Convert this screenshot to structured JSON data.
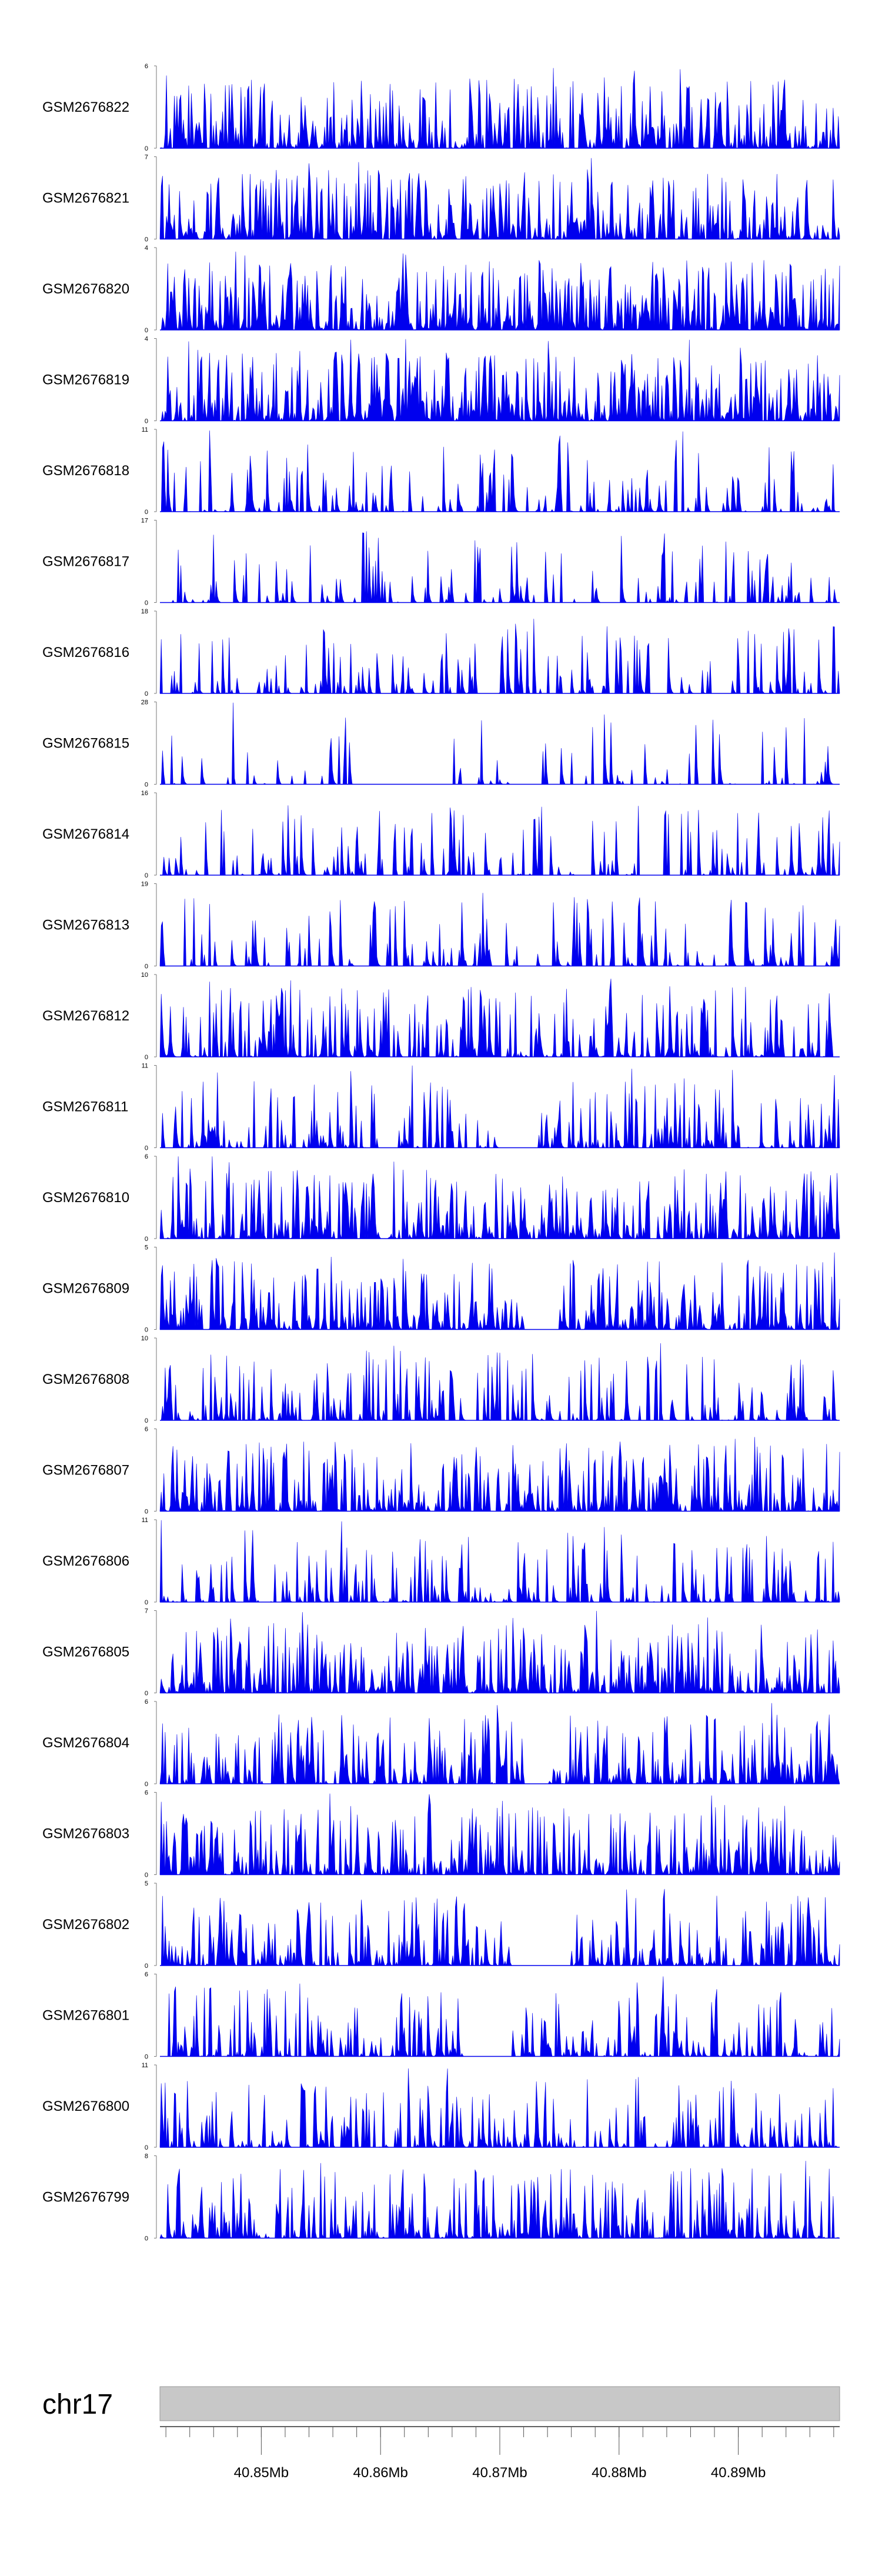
{
  "colors": {
    "signal": "#0000ee",
    "ideogram": "#c8c8c8",
    "axis": "#000000"
  },
  "chart_data": {
    "type": "area",
    "chromosome": "chr17",
    "xlim_mb": [
      40.8415,
      40.8985
    ],
    "xticks": [
      {
        "value": 40.85,
        "label": "40.85Mb"
      },
      {
        "value": 40.86,
        "label": "40.86Mb"
      },
      {
        "value": 40.87,
        "label": "40.87Mb"
      },
      {
        "value": 40.88,
        "label": "40.88Mb"
      },
      {
        "value": 40.89,
        "label": "40.89Mb"
      }
    ],
    "tracks": [
      {
        "name": "GSM2676822",
        "ymin": "0",
        "ymax": "6",
        "ymax_value": 6,
        "seed": 1822,
        "density": 0.7,
        "gap": []
      },
      {
        "name": "GSM2676821",
        "ymin": "0",
        "ymax": "7",
        "ymax_value": 7,
        "seed": 1821,
        "density": 0.75,
        "gap": []
      },
      {
        "name": "GSM2676820",
        "ymin": "0",
        "ymax": "4",
        "ymax_value": 4,
        "seed": 1820,
        "density": 0.9,
        "gap": []
      },
      {
        "name": "GSM2676819",
        "ymin": "0",
        "ymax": "4",
        "ymax_value": 4,
        "seed": 1819,
        "density": 0.85,
        "gap": []
      },
      {
        "name": "GSM2676818",
        "ymin": "0",
        "ymax": "11",
        "ymax_value": 11,
        "seed": 1818,
        "density": 0.35,
        "gap": []
      },
      {
        "name": "GSM2676817",
        "ymin": "0",
        "ymax": "17",
        "ymax_value": 17,
        "seed": 1817,
        "density": 0.25,
        "gap": []
      },
      {
        "name": "GSM2676816",
        "ymin": "0",
        "ymax": "18",
        "ymax_value": 18,
        "seed": 1816,
        "density": 0.3,
        "gap": []
      },
      {
        "name": "GSM2676815",
        "ymin": "0",
        "ymax": "28",
        "ymax_value": 28,
        "seed": 1815,
        "density": 0.18,
        "gap": [
          40.858,
          40.866
        ]
      },
      {
        "name": "GSM2676814",
        "ymin": "0",
        "ymax": "16",
        "ymax_value": 16,
        "seed": 1814,
        "density": 0.3,
        "gap": []
      },
      {
        "name": "GSM2676813",
        "ymin": "0",
        "ymax": "19",
        "ymax_value": 19,
        "seed": 1813,
        "density": 0.28,
        "gap": []
      },
      {
        "name": "GSM2676812",
        "ymin": "0",
        "ymax": "10",
        "ymax_value": 10,
        "seed": 1812,
        "density": 0.55,
        "gap": []
      },
      {
        "name": "GSM2676811",
        "ymin": "0",
        "ymax": "11",
        "ymax_value": 11,
        "seed": 1811,
        "density": 0.5,
        "gap": [
          40.87,
          40.873
        ]
      },
      {
        "name": "GSM2676810",
        "ymin": "0",
        "ymax": "6",
        "ymax_value": 6,
        "seed": 1810,
        "density": 0.7,
        "gap": []
      },
      {
        "name": "GSM2676809",
        "ymin": "0",
        "ymax": "5",
        "ymax_value": 5,
        "seed": 1809,
        "density": 0.72,
        "gap": [
          40.872,
          40.875
        ]
      },
      {
        "name": "GSM2676808",
        "ymin": "0",
        "ymax": "10",
        "ymax_value": 10,
        "seed": 1808,
        "density": 0.4,
        "gap": []
      },
      {
        "name": "GSM2676807",
        "ymin": "0",
        "ymax": "6",
        "ymax_value": 6,
        "seed": 1807,
        "density": 0.7,
        "gap": []
      },
      {
        "name": "GSM2676806",
        "ymin": "0",
        "ymax": "11",
        "ymax_value": 11,
        "seed": 1806,
        "density": 0.45,
        "gap": []
      },
      {
        "name": "GSM2676805",
        "ymin": "0",
        "ymax": "7",
        "ymax_value": 7,
        "seed": 1805,
        "density": 0.75,
        "gap": []
      },
      {
        "name": "GSM2676804",
        "ymin": "0",
        "ymax": "6",
        "ymax_value": 6,
        "seed": 1804,
        "density": 0.6,
        "gap": [
          40.872,
          40.874
        ]
      },
      {
        "name": "GSM2676803",
        "ymin": "0",
        "ymax": "6",
        "ymax_value": 6,
        "seed": 1803,
        "density": 0.68,
        "gap": []
      },
      {
        "name": "GSM2676802",
        "ymin": "0",
        "ymax": "5",
        "ymax_value": 5,
        "seed": 1802,
        "density": 0.6,
        "gap": [
          40.871,
          40.876
        ]
      },
      {
        "name": "GSM2676801",
        "ymin": "0",
        "ymax": "6",
        "ymax_value": 6,
        "seed": 1801,
        "density": 0.55,
        "gap": [
          40.867,
          40.871
        ]
      },
      {
        "name": "GSM2676800",
        "ymin": "0",
        "ymax": "11",
        "ymax_value": 11,
        "seed": 1800,
        "density": 0.45,
        "gap": []
      },
      {
        "name": "GSM2676799",
        "ymin": "0",
        "ymax": "8",
        "ymax_value": 8,
        "seed": 1799,
        "density": 0.65,
        "gap": []
      }
    ]
  }
}
